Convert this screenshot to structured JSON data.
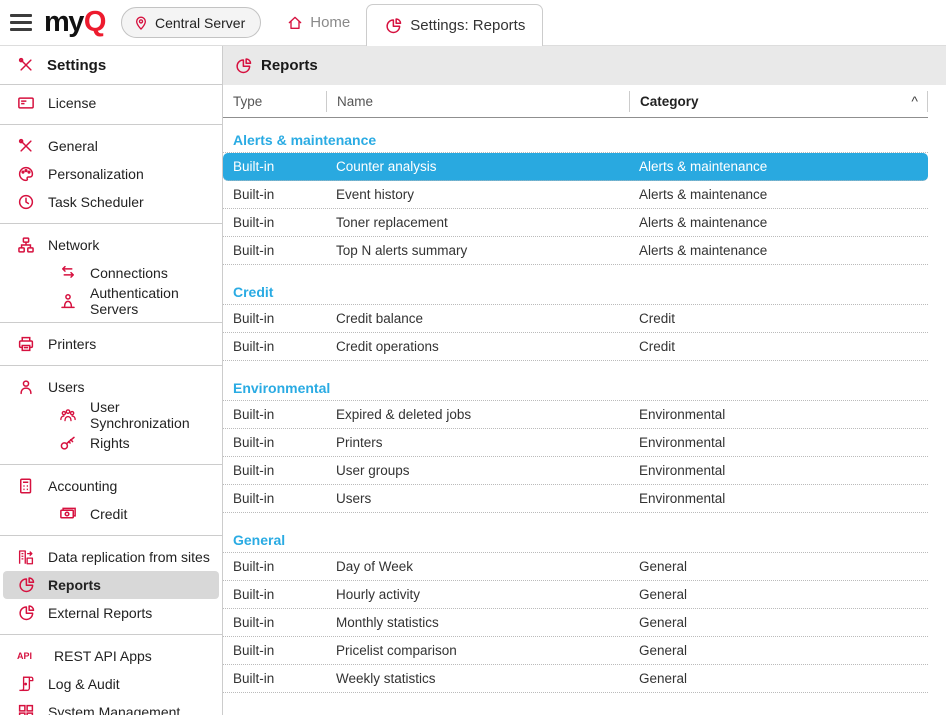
{
  "brand": {
    "logo_my": "my",
    "logo_q": "Q"
  },
  "topbar": {
    "server_button": "Central Server",
    "home_label": "Home",
    "active_tab": "Settings: Reports"
  },
  "sidebar": {
    "title": "Settings",
    "title_icon": "tools",
    "items": [
      {
        "label": "License",
        "icon": "license",
        "indent": false,
        "selected": false,
        "divider_after": true
      },
      {
        "label": "General",
        "icon": "tools",
        "indent": false,
        "selected": false,
        "divider_after": false
      },
      {
        "label": "Personalization",
        "icon": "palette",
        "indent": false,
        "selected": false,
        "divider_after": false
      },
      {
        "label": "Task Scheduler",
        "icon": "clock",
        "indent": false,
        "selected": false,
        "divider_after": true
      },
      {
        "label": "Network",
        "icon": "network",
        "indent": false,
        "selected": false,
        "divider_after": false
      },
      {
        "label": "Connections",
        "icon": "arrows-swap",
        "indent": true,
        "selected": false,
        "divider_after": false
      },
      {
        "label": "Authentication Servers",
        "icon": "person-auth",
        "indent": true,
        "selected": false,
        "divider_after": true
      },
      {
        "label": "Printers",
        "icon": "printer",
        "indent": false,
        "selected": false,
        "divider_after": true
      },
      {
        "label": "Users",
        "icon": "user",
        "indent": false,
        "selected": false,
        "divider_after": false
      },
      {
        "label": "User Synchronization",
        "icon": "users-group",
        "indent": true,
        "selected": false,
        "divider_after": false
      },
      {
        "label": "Rights",
        "icon": "key",
        "indent": true,
        "selected": false,
        "divider_after": true
      },
      {
        "label": "Accounting",
        "icon": "calculator",
        "indent": false,
        "selected": false,
        "divider_after": false
      },
      {
        "label": "Credit",
        "icon": "banknotes",
        "indent": true,
        "selected": false,
        "divider_after": true
      },
      {
        "label": "Data replication from sites",
        "icon": "replication",
        "indent": false,
        "selected": false,
        "divider_after": false
      },
      {
        "label": "Reports",
        "icon": "pie-chart",
        "indent": false,
        "selected": true,
        "divider_after": false
      },
      {
        "label": "External Reports",
        "icon": "pie-chart",
        "indent": false,
        "selected": false,
        "divider_after": true
      },
      {
        "label": "REST API Apps",
        "icon": "api",
        "indent": false,
        "selected": false,
        "divider_after": false
      },
      {
        "label": "Log & Audit",
        "icon": "scroll",
        "indent": false,
        "selected": false,
        "divider_after": false
      },
      {
        "label": "System Management",
        "icon": "grid",
        "indent": false,
        "selected": false,
        "divider_after": true
      }
    ]
  },
  "main": {
    "title": "Reports",
    "title_icon": "pie-chart",
    "columns": {
      "type": "Type",
      "name": "Name",
      "category": "Category"
    },
    "sorted_column": "category",
    "sort_caret": "^",
    "groups": [
      {
        "name": "Alerts & maintenance",
        "rows": [
          {
            "type": "Built-in",
            "name": "Counter analysis",
            "category": "Alerts & maintenance",
            "selected": true
          },
          {
            "type": "Built-in",
            "name": "Event history",
            "category": "Alerts & maintenance",
            "selected": false
          },
          {
            "type": "Built-in",
            "name": "Toner replacement",
            "category": "Alerts & maintenance",
            "selected": false
          },
          {
            "type": "Built-in",
            "name": "Top N alerts summary",
            "category": "Alerts & maintenance",
            "selected": false
          }
        ]
      },
      {
        "name": "Credit",
        "rows": [
          {
            "type": "Built-in",
            "name": "Credit balance",
            "category": "Credit",
            "selected": false
          },
          {
            "type": "Built-in",
            "name": "Credit operations",
            "category": "Credit",
            "selected": false
          }
        ]
      },
      {
        "name": "Environmental",
        "rows": [
          {
            "type": "Built-in",
            "name": "Expired & deleted jobs",
            "category": "Environmental",
            "selected": false
          },
          {
            "type": "Built-in",
            "name": "Printers",
            "category": "Environmental",
            "selected": false
          },
          {
            "type": "Built-in",
            "name": "User groups",
            "category": "Environmental",
            "selected": false
          },
          {
            "type": "Built-in",
            "name": "Users",
            "category": "Environmental",
            "selected": false
          }
        ]
      },
      {
        "name": "General",
        "rows": [
          {
            "type": "Built-in",
            "name": "Day of Week",
            "category": "General",
            "selected": false
          },
          {
            "type": "Built-in",
            "name": "Hourly activity",
            "category": "General",
            "selected": false
          },
          {
            "type": "Built-in",
            "name": "Monthly statistics",
            "category": "General",
            "selected": false
          },
          {
            "type": "Built-in",
            "name": "Pricelist comparison",
            "category": "General",
            "selected": false
          },
          {
            "type": "Built-in",
            "name": "Weekly statistics",
            "category": "General",
            "selected": false
          }
        ]
      }
    ]
  },
  "colors": {
    "brand_red": "#d6113f",
    "logo_red": "#ed1b2e",
    "selection_cyan": "#29a9e0",
    "group_header_cyan": "#2aabe3",
    "sidebar_selected_gray": "#d8d8d8",
    "header_gray": "#e9e9e9"
  }
}
